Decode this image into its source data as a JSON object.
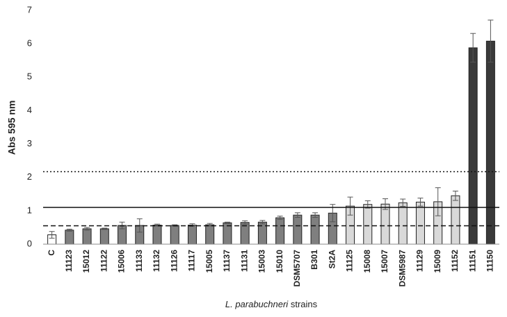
{
  "chart_data": {
    "type": "bar",
    "y_label": "Abs 595 nm",
    "x_label": [
      "L. parabuchneri",
      "strains"
    ],
    "categories": [
      "C",
      "11123",
      "15012",
      "11122",
      "15006",
      "11133",
      "11132",
      "11126",
      "11117",
      "15005",
      "11137",
      "11131",
      "15003",
      "15010",
      "DSM5707",
      "B301",
      "St2A",
      "11125",
      "15008",
      "15007",
      "DSM5987",
      "11129",
      "15009",
      "11152",
      "11151",
      "11150"
    ],
    "values": [
      0.28,
      0.42,
      0.46,
      0.46,
      0.56,
      0.56,
      0.57,
      0.56,
      0.57,
      0.58,
      0.64,
      0.65,
      0.66,
      0.79,
      0.87,
      0.87,
      0.93,
      1.14,
      1.19,
      1.2,
      1.24,
      1.26,
      1.27,
      1.45,
      5.88,
      6.08
    ],
    "errors": [
      0.1,
      0.03,
      0.04,
      0.02,
      0.1,
      0.2,
      0.03,
      0.02,
      0.04,
      0.04,
      0.02,
      0.05,
      0.05,
      0.05,
      0.07,
      0.07,
      0.26,
      0.27,
      0.11,
      0.16,
      0.11,
      0.12,
      0.42,
      0.14,
      0.43,
      0.63
    ],
    "colors": [
      "#ffffff",
      "#7f7f7f",
      "#7f7f7f",
      "#7f7f7f",
      "#7f7f7f",
      "#7f7f7f",
      "#7f7f7f",
      "#7f7f7f",
      "#7f7f7f",
      "#7f7f7f",
      "#7f7f7f",
      "#7f7f7f",
      "#7f7f7f",
      "#7f7f7f",
      "#7f7f7f",
      "#7f7f7f",
      "#7f7f7f",
      "#d9d9d9",
      "#d9d9d9",
      "#d9d9d9",
      "#d9d9d9",
      "#d9d9d9",
      "#d9d9d9",
      "#d9d9d9",
      "#3a3a3a",
      "#3a3a3a"
    ],
    "reference_lines": [
      {
        "value": 2.17,
        "style": "dotted"
      },
      {
        "value": 1.1,
        "style": "solid"
      },
      {
        "value": 0.55,
        "style": "dashed"
      }
    ],
    "ylim": [
      0,
      7
    ],
    "yticks": [
      0,
      1,
      2,
      3,
      4,
      5,
      6,
      7
    ],
    "grid": false
  }
}
